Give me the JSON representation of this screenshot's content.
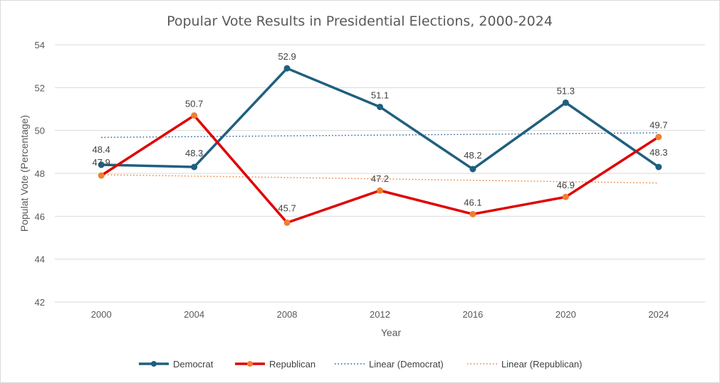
{
  "chart_data": {
    "type": "line",
    "title": "Popular Vote Results in Presidential Elections, 2000-2024",
    "xlabel": "Year",
    "ylabel": "Populat Vote (Percentage)",
    "categories": [
      "2000",
      "2004",
      "2008",
      "2012",
      "2016",
      "2020",
      "2024"
    ],
    "ylim": [
      42,
      54
    ],
    "yticks": [
      "42",
      "44",
      "46",
      "48",
      "50",
      "52",
      "54"
    ],
    "grid": "horizontal",
    "legend_position": "bottom",
    "series": [
      {
        "name": "Democrat",
        "values": [
          48.4,
          48.3,
          52.9,
          51.1,
          48.2,
          51.3,
          48.3
        ],
        "labels": [
          "48.4",
          "48.3",
          "52.9",
          "51.1",
          "48.2",
          "51.3",
          "48.3"
        ],
        "color": "#1f5f7f",
        "marker_color": "#1f5f7f"
      },
      {
        "name": "Republican",
        "values": [
          47.9,
          50.7,
          45.7,
          47.2,
          46.1,
          46.9,
          49.7
        ],
        "labels": [
          "47.9",
          "50.7",
          "45.7",
          "47.2",
          "46.1",
          "46.9",
          "49.7"
        ],
        "color": "#e00000",
        "marker_color": "#f08030"
      }
    ],
    "trendlines": [
      {
        "name": "Linear (Democrat)",
        "of": "Democrat",
        "style": "dotted",
        "color": "#1f5f9f"
      },
      {
        "name": "Linear (Republican)",
        "of": "Republican",
        "style": "dotted",
        "color": "#ed7d31"
      }
    ]
  }
}
